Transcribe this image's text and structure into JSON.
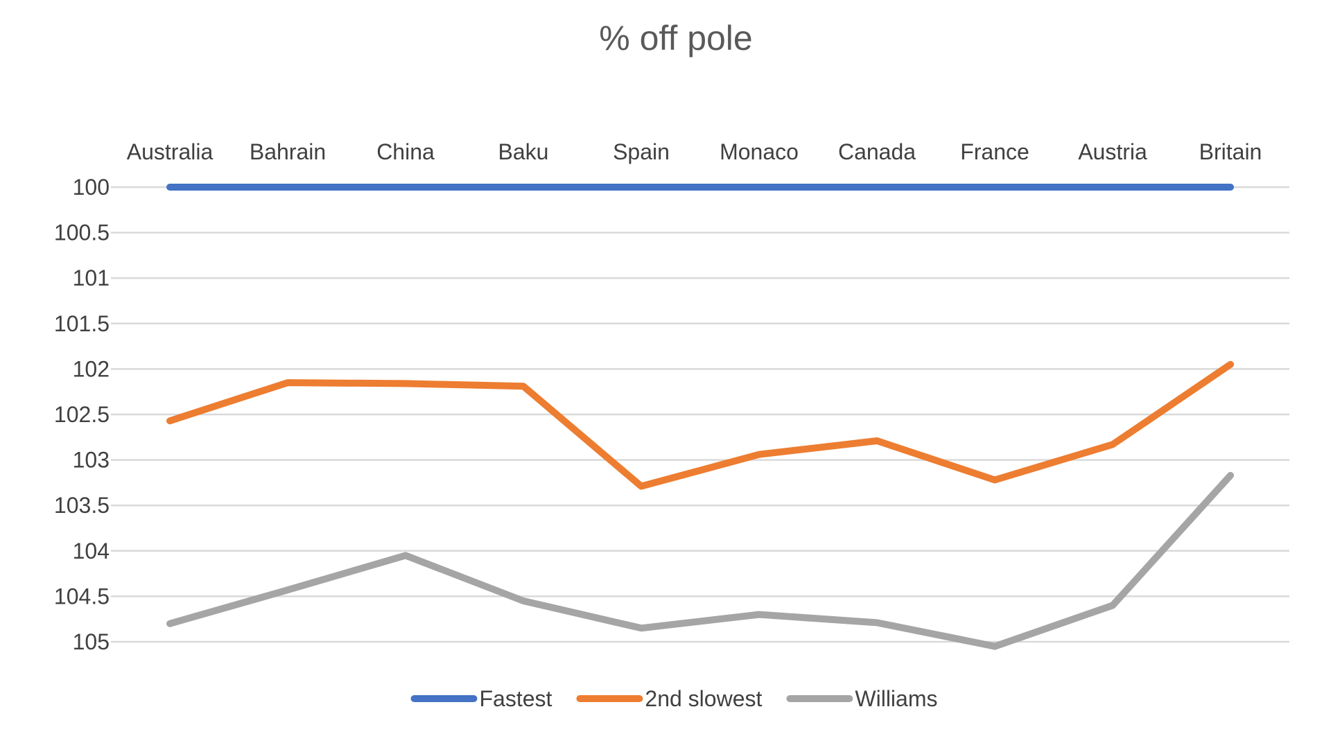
{
  "chart_data": {
    "type": "line",
    "title": "% off pole",
    "categories": [
      "Australia",
      "Bahrain",
      "China",
      "Baku",
      "Spain",
      "Monaco",
      "Canada",
      "France",
      "Austria",
      "Britain"
    ],
    "y_ticks": [
      "100",
      "100.5",
      "101",
      "101.5",
      "102",
      "102.5",
      "103",
      "103.5",
      "104",
      "104.5",
      "105"
    ],
    "ylim": [
      100,
      105
    ],
    "y_reversed": true,
    "xaxis_position": "top",
    "grid": true,
    "legend_position": "bottom",
    "series": [
      {
        "name": "Fastest",
        "color": "#4472C4",
        "values": [
          100,
          100,
          100,
          100,
          100,
          100,
          100,
          100,
          100,
          100
        ]
      },
      {
        "name": "2nd slowest",
        "color": "#ED7D31",
        "values": [
          102.57,
          102.15,
          102.16,
          102.19,
          103.29,
          102.94,
          102.79,
          103.22,
          102.83,
          101.95
        ]
      },
      {
        "name": "Williams",
        "color": "#A5A5A5",
        "values": [
          104.8,
          104.43,
          104.05,
          104.55,
          104.85,
          104.7,
          104.79,
          105.05,
          104.6,
          103.17
        ]
      }
    ]
  }
}
